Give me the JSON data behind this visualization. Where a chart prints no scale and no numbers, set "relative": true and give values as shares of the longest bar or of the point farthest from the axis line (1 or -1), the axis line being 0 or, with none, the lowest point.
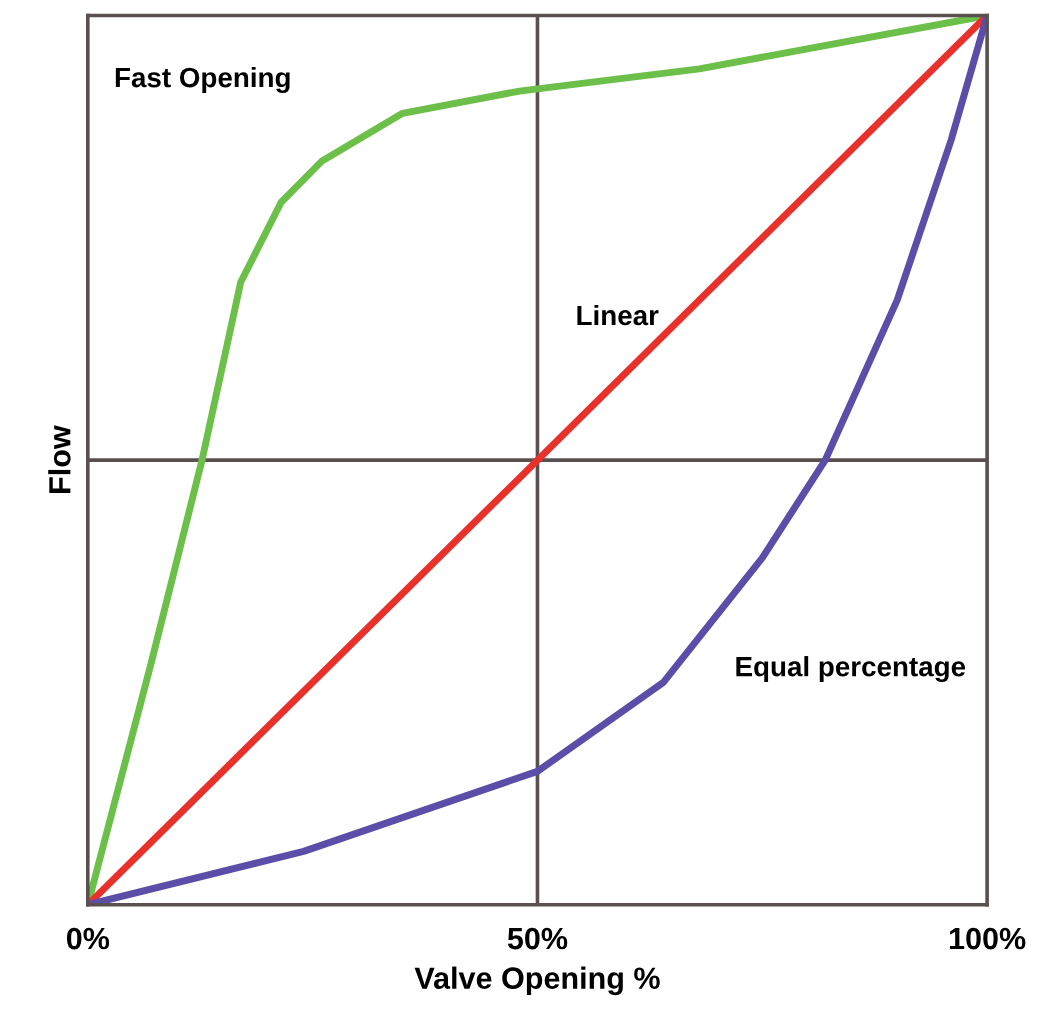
{
  "chart_data": {
    "type": "line",
    "xlabel": "Valve Opening %",
    "ylabel": "Flow",
    "relative": true,
    "xlim": [
      0,
      100
    ],
    "xticks": [
      {
        "value": 0,
        "label": "0%"
      },
      {
        "value": 50,
        "label": "50%"
      },
      {
        "value": 100,
        "label": "100%"
      }
    ],
    "ref_lines": [
      {
        "axis": "x",
        "value": 50,
        "color": "#5a5050"
      },
      {
        "axis": "y",
        "value": 0.5,
        "color": "#5a5050"
      }
    ],
    "series": [
      {
        "name": "Fast Opening",
        "color": "#6cc04a",
        "x": [
          0,
          7,
          12.7,
          17,
          21.5,
          26,
          35,
          48,
          68,
          100
        ],
        "values": [
          0,
          0.27,
          0.5,
          0.7,
          0.79,
          0.836,
          0.89,
          0.915,
          0.94,
          1
        ]
      },
      {
        "name": "Linear",
        "color": "#e8312a",
        "x": [
          0,
          100
        ],
        "values": [
          0,
          1
        ]
      },
      {
        "name": "Equal percentage",
        "color": "#5b4ea8",
        "x": [
          0,
          24,
          50,
          64,
          75,
          82,
          90,
          96,
          100
        ],
        "values": [
          0,
          0.06,
          0.15,
          0.25,
          0.39,
          0.5,
          0.68,
          0.86,
          1
        ]
      }
    ],
    "legend": false,
    "grid": false,
    "marker": "none",
    "line_style": "solid"
  }
}
